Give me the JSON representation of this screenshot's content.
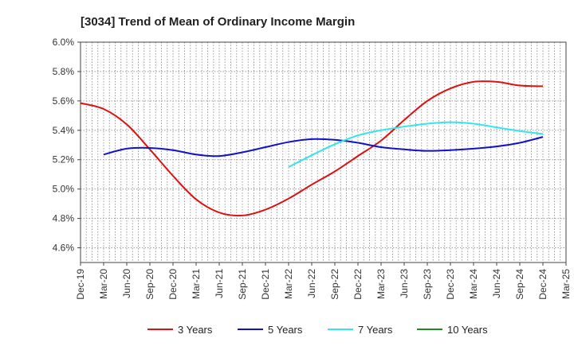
{
  "chart_data": {
    "type": "line",
    "title": "[3034]  Trend of Mean of Ordinary Income Margin",
    "xlabel": "",
    "ylabel": "",
    "ylim": [
      4.5,
      6.0
    ],
    "y_ticks": [
      "4.6%",
      "4.8%",
      "5.0%",
      "5.2%",
      "5.4%",
      "5.6%",
      "5.8%",
      "6.0%"
    ],
    "y_tick_values": [
      4.6,
      4.8,
      5.0,
      5.2,
      5.4,
      5.6,
      5.8,
      6.0
    ],
    "categories": [
      "Dec-19",
      "Mar-20",
      "Jun-20",
      "Sep-20",
      "Dec-20",
      "Mar-21",
      "Jun-21",
      "Sep-21",
      "Dec-21",
      "Mar-22",
      "Jun-22",
      "Sep-22",
      "Dec-22",
      "Mar-23",
      "Jun-23",
      "Sep-23",
      "Dec-23",
      "Mar-24",
      "Jun-24",
      "Sep-24",
      "Dec-24",
      "Mar-25"
    ],
    "grid": true,
    "legend_position": "bottom",
    "series": [
      {
        "name": "3 Years",
        "color": "#dd1111",
        "values": [
          5.585,
          5.545,
          5.44,
          5.27,
          5.09,
          4.93,
          4.84,
          4.82,
          4.86,
          4.935,
          5.03,
          5.12,
          5.225,
          5.33,
          5.47,
          5.6,
          5.685,
          5.73,
          5.73,
          5.705,
          5.7,
          null
        ]
      },
      {
        "name": "5 Years",
        "color": "#1111cc",
        "values": [
          null,
          5.235,
          5.275,
          5.28,
          5.265,
          5.235,
          5.225,
          5.25,
          5.285,
          5.32,
          5.34,
          5.335,
          5.315,
          5.285,
          5.27,
          5.26,
          5.265,
          5.275,
          5.29,
          5.315,
          5.355,
          null
        ]
      },
      {
        "name": "7 Years",
        "color": "#33e6ee",
        "values": [
          null,
          null,
          null,
          null,
          null,
          null,
          null,
          null,
          null,
          5.15,
          5.23,
          5.305,
          5.365,
          5.4,
          5.425,
          5.445,
          5.455,
          5.445,
          5.42,
          5.395,
          5.375,
          null
        ]
      },
      {
        "name": "10 Years",
        "color": "#228822",
        "values": [
          null,
          null,
          null,
          null,
          null,
          null,
          null,
          null,
          null,
          null,
          null,
          null,
          null,
          null,
          null,
          null,
          null,
          null,
          null,
          null,
          null,
          null
        ]
      }
    ]
  }
}
